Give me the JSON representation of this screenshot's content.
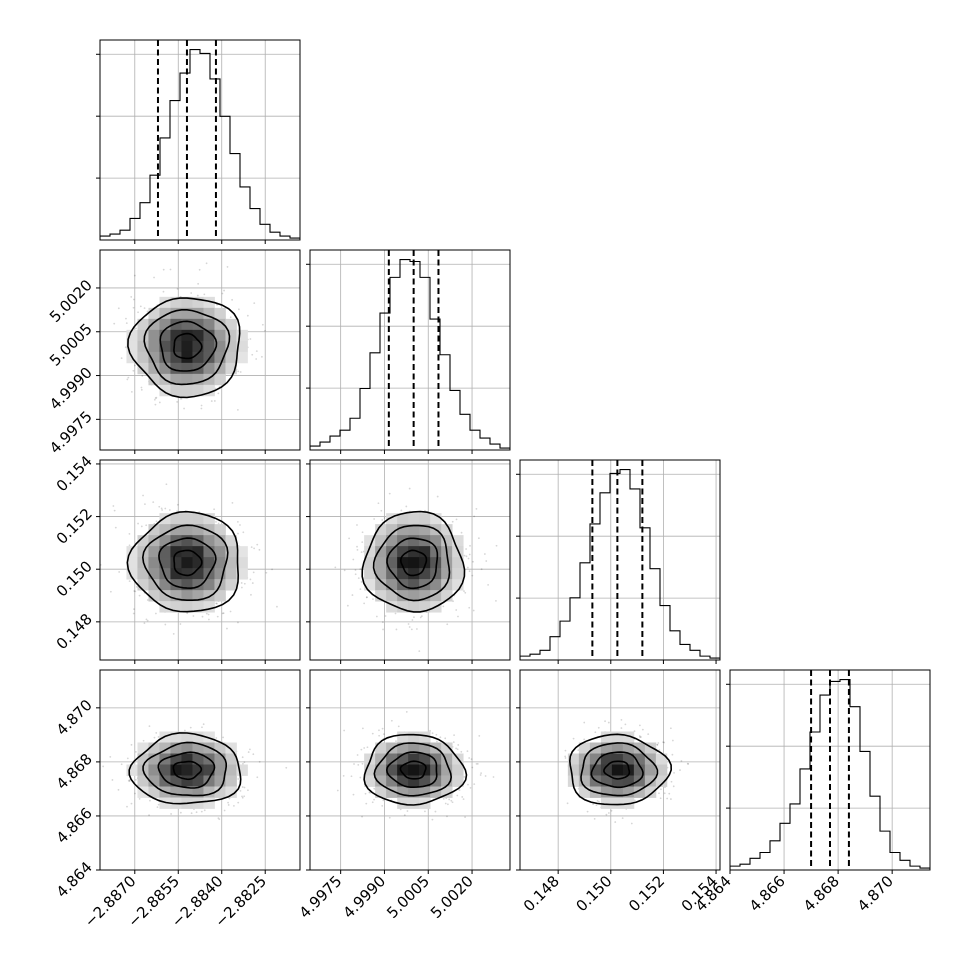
{
  "chart_data": {
    "type": "corner",
    "parameters": [
      {
        "mean": -2.8852,
        "std": 0.00095,
        "median": -2.8852,
        "q16": -2.8862,
        "q84": -2.8842,
        "range": [
          -2.8882,
          -2.8813
        ],
        "ticks": [
          -2.887,
          -2.8855,
          -2.884,
          -2.8825
        ],
        "tick_labels": [
          "−2.8870",
          "−2.8855",
          "−2.8840",
          "−2.8825"
        ]
      },
      {
        "mean": 5.0,
        "std": 0.00085,
        "median": 5.0,
        "q16": 4.99915,
        "q84": 5.00085,
        "range": [
          4.99645,
          5.0033
        ],
        "ticks": [
          4.9975,
          4.999,
          5.0005,
          5.002
        ],
        "tick_labels": [
          "4.9975",
          "4.9990",
          "5.0005",
          "5.0020"
        ]
      },
      {
        "mean": 0.15025,
        "std": 0.00095,
        "median": 0.15025,
        "q16": 0.1493,
        "q84": 0.1512,
        "range": [
          0.14655,
          0.15415
        ],
        "ticks": [
          0.148,
          0.15,
          0.152,
          0.154
        ],
        "tick_labels": [
          "0.148",
          "0.150",
          "0.152",
          "0.154"
        ]
      },
      {
        "mean": 4.8677,
        "std": 0.00065,
        "median": 4.8677,
        "q16": 4.867,
        "q84": 4.8684,
        "range": [
          4.864,
          4.8714
        ],
        "ticks": [
          4.864,
          4.866,
          4.868,
          4.87
        ],
        "tick_labels": [
          "4.864",
          "4.866",
          "4.868",
          "4.870"
        ]
      }
    ],
    "histograms": [
      {
        "param": 0,
        "bins": 20,
        "counts": [
          2,
          3,
          5,
          11,
          19,
          33,
          52,
          71,
          85,
          97,
          95,
          82,
          63,
          44,
          27,
          16,
          8,
          4,
          2,
          1
        ]
      },
      {
        "param": 1,
        "bins": 20,
        "counts": [
          2,
          4,
          7,
          10,
          16,
          31,
          49,
          69,
          87,
          96,
          95,
          87,
          66,
          48,
          30,
          18,
          10,
          6,
          3,
          1
        ]
      },
      {
        "param": 2,
        "bins": 20,
        "counts": [
          2,
          3,
          5,
          12,
          20,
          32,
          50,
          70,
          86,
          96,
          98,
          88,
          68,
          47,
          28,
          15,
          8,
          5,
          2,
          1
        ]
      },
      {
        "param": 3,
        "bins": 20,
        "counts": [
          2,
          3,
          6,
          9,
          15,
          24,
          34,
          52,
          71,
          90,
          97,
          98,
          84,
          61,
          38,
          20,
          9,
          5,
          2,
          1
        ]
      }
    ],
    "levels_sigma": [
      0.5,
      1.0,
      1.5,
      2.0
    ],
    "grid": true,
    "quantile_lines": "dashed"
  }
}
